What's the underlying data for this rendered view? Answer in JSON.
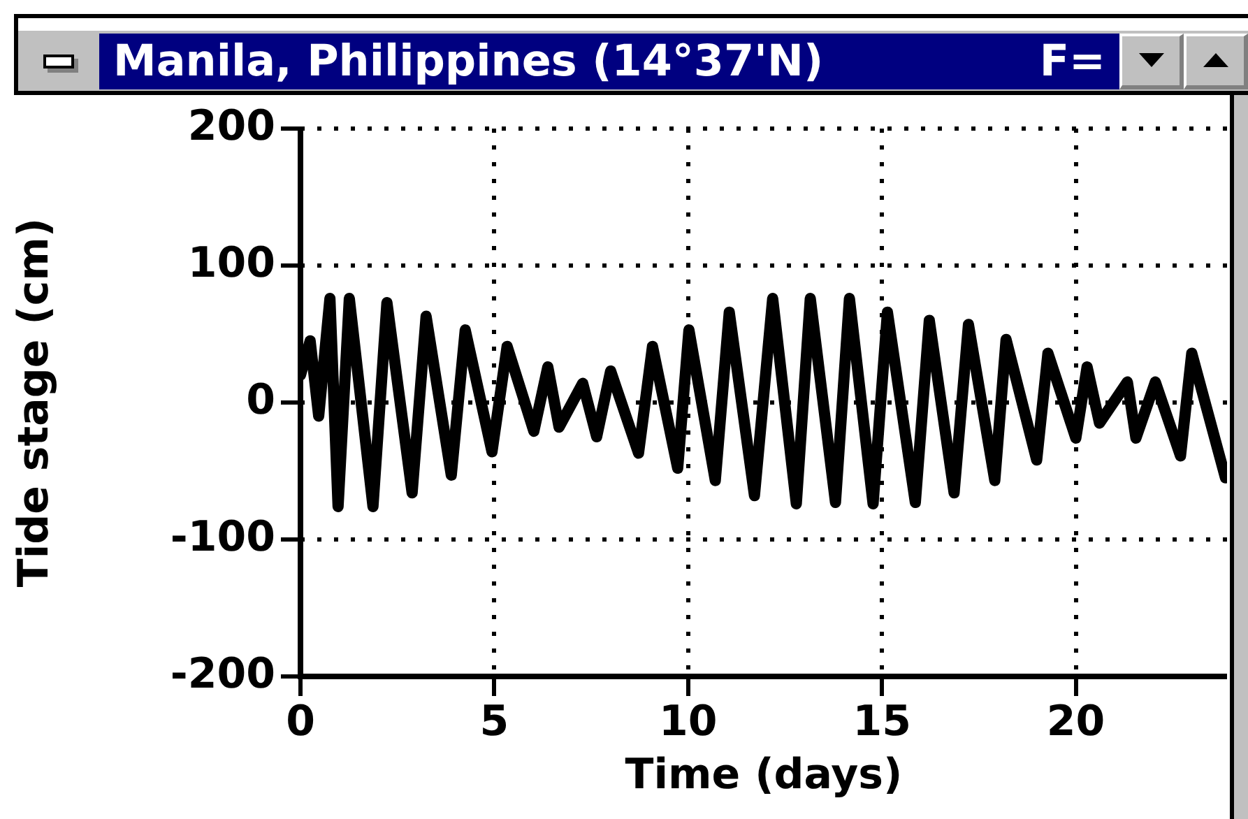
{
  "chart_data": {
    "type": "line",
    "title": "Manila, Philippines (14°37'N)",
    "annotations": [
      "F="
    ],
    "xlabel": "Time (days)",
    "ylabel": "Tide stage (cm)",
    "xlim": [
      0,
      23.9
    ],
    "xticks": [
      0,
      5,
      10,
      15,
      20
    ],
    "ylim": [
      -200,
      200
    ],
    "yticks": [
      -200,
      -100,
      0,
      100,
      200
    ],
    "grid": true,
    "legend": false,
    "series": [
      {
        "color": "#000000",
        "x": [
          0,
          0.25,
          0.47,
          0.76,
          0.97,
          1.26,
          1.87,
          2.23,
          2.88,
          3.24,
          3.89,
          4.25,
          4.94,
          5.33,
          6.02,
          6.38,
          6.67,
          7.28,
          7.64,
          8.0,
          8.72,
          9.08,
          9.73,
          10.02,
          10.7,
          11.06,
          11.71,
          12.18,
          12.79,
          13.15,
          13.8,
          14.16,
          14.77,
          15.14,
          15.86,
          16.22,
          16.86,
          17.23,
          17.91,
          18.2,
          18.99,
          19.28,
          20.0,
          20.29,
          20.61,
          21.33,
          21.55,
          22.05,
          22.7,
          22.99,
          23.86
        ],
        "values": [
          20,
          45,
          -10,
          76,
          -76,
          76,
          -76,
          73,
          -66,
          63,
          -53,
          53,
          -36,
          41,
          -21,
          26,
          -18,
          14,
          -25,
          23,
          -37,
          41,
          -48,
          53,
          -57,
          66,
          -68,
          76,
          -74,
          76,
          -73,
          76,
          -74,
          66,
          -73,
          60,
          -66,
          57,
          -57,
          46,
          -42,
          36,
          -26,
          26,
          -15,
          15,
          -26,
          15,
          -39,
          36,
          -55
        ]
      }
    ]
  }
}
